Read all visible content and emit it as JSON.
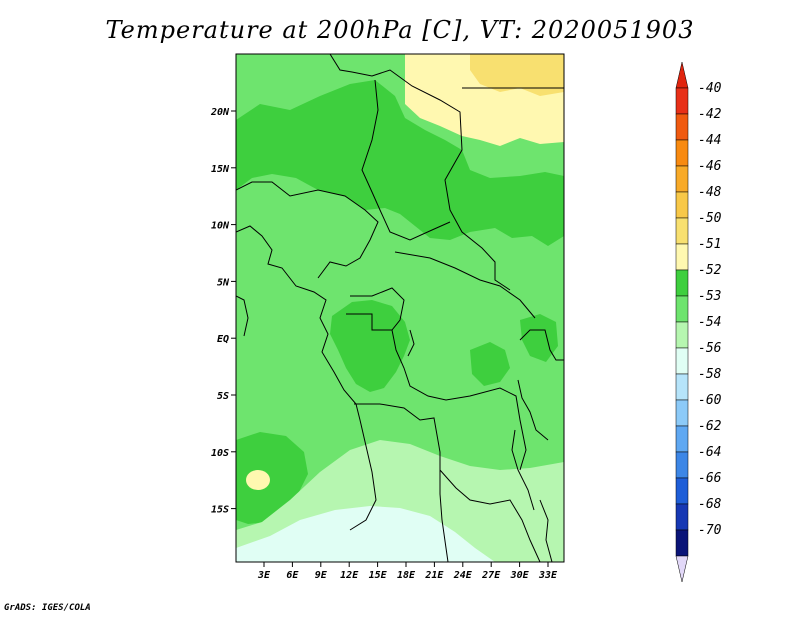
{
  "title": "Temperature at 200hPa [C], VT: 2020051903",
  "credit": "GrADS: IGES/COLA",
  "map": {
    "lon_labels": [
      "3E",
      "6E",
      "9E",
      "12E",
      "15E",
      "18E",
      "21E",
      "24E",
      "27E",
      "30E",
      "33E"
    ],
    "lat_labels": [
      "20N",
      "15N",
      "10N",
      "5N",
      "EQ",
      "5S",
      "10S",
      "15S"
    ]
  },
  "legend": {
    "levels": [
      {
        "label": "-40",
        "color": "#e83018"
      },
      {
        "label": "-42",
        "color": "#f05a10"
      },
      {
        "label": "-44",
        "color": "#f88a10"
      },
      {
        "label": "-46",
        "color": "#f8aa28"
      },
      {
        "label": "-48",
        "color": "#f8c848"
      },
      {
        "label": "-50",
        "color": "#f8e070"
      },
      {
        "label": "-51",
        "color": "#fff8b0"
      },
      {
        "label": "-52",
        "color": "#3ecf3e"
      },
      {
        "label": "-53",
        "color": "#6ee46e"
      },
      {
        "label": "-54",
        "color": "#b6f6b0"
      },
      {
        "label": "-56",
        "color": "#e0fef4"
      },
      {
        "label": "-58",
        "color": "#b6e4fa"
      },
      {
        "label": "-60",
        "color": "#8ccaf8"
      },
      {
        "label": "-62",
        "color": "#5fa8f2"
      },
      {
        "label": "-64",
        "color": "#3c86e6"
      },
      {
        "label": "-66",
        "color": "#1e5ed8"
      },
      {
        "label": "-68",
        "color": "#1638b4"
      },
      {
        "label": "-70",
        "color": "#0a1478"
      }
    ],
    "top_arrow_color": "#e0240e",
    "bottom_arrow_color": "#e2d8f8"
  }
}
